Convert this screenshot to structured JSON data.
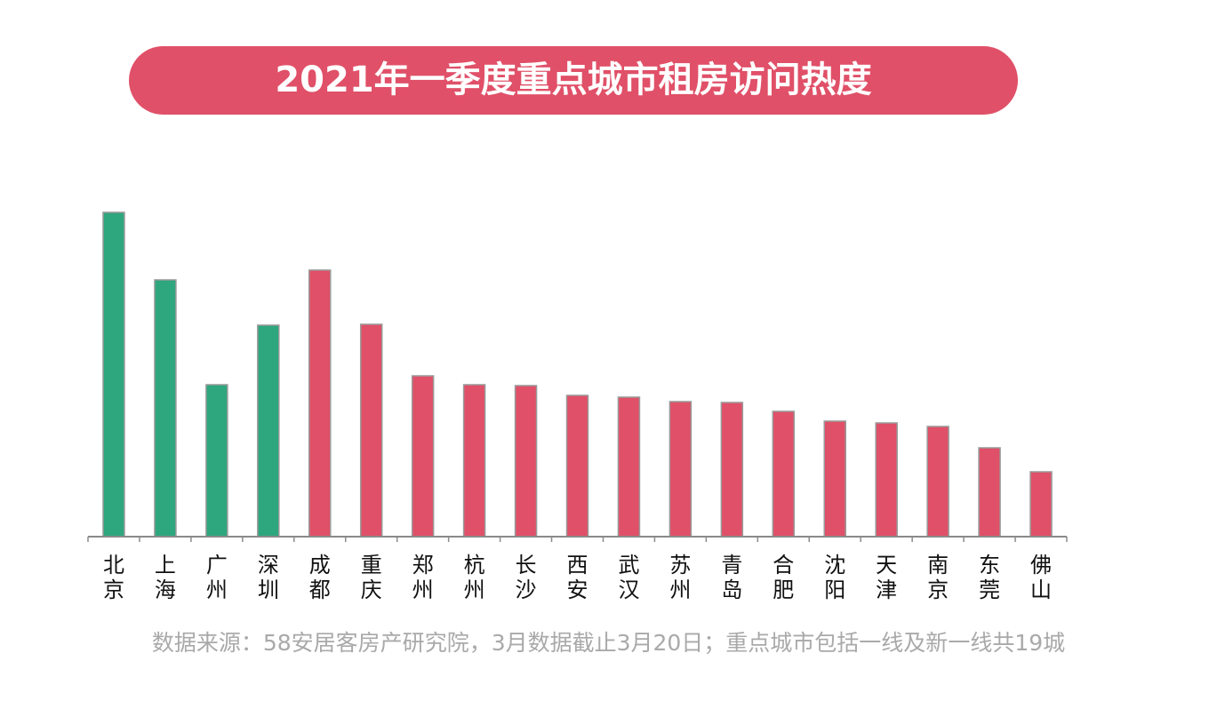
{
  "chart_data": {
    "type": "bar",
    "title": "2021年一季度重点城市租房访问热度",
    "categories": [
      "北京",
      "上海",
      "广州",
      "深圳",
      "成都",
      "重庆",
      "郑州",
      "杭州",
      "长沙",
      "西安",
      "武汉",
      "苏州",
      "青岛",
      "合肥",
      "沈阳",
      "天津",
      "南京",
      "东莞",
      "佛山"
    ],
    "values": [
      365,
      289,
      171,
      238,
      300,
      239,
      181,
      171,
      170,
      159,
      157,
      152,
      151,
      141,
      130,
      128,
      124,
      100,
      73
    ],
    "colors": [
      "#2ea67e",
      "#2ea67e",
      "#2ea67e",
      "#2ea67e",
      "#e05068",
      "#e05068",
      "#e05068",
      "#e05068",
      "#e05068",
      "#e05068",
      "#e05068",
      "#e05068",
      "#e05068",
      "#e05068",
      "#e05068",
      "#e05068",
      "#e05068",
      "#e05068",
      "#e05068"
    ],
    "ylim": [
      0,
      400
    ],
    "source": "数据来源：58安居客房产研究院，3月数据截止3月20日；重点城市包括一线及新一线共19城"
  }
}
